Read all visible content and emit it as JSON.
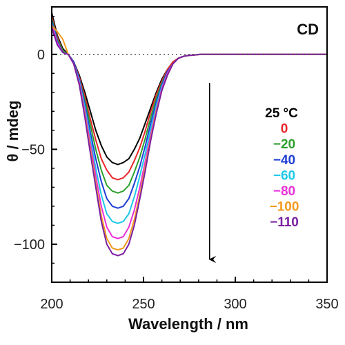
{
  "chart_data": {
    "type": "line",
    "title": "",
    "corner_label": "CD",
    "xlabel": "Wavelength / nm",
    "ylabel": "θ / mdeg",
    "xlim": [
      200,
      350
    ],
    "ylim": [
      -120,
      25
    ],
    "x_ticks": [
      200,
      250,
      300,
      350
    ],
    "y_ticks": [
      0,
      -50,
      -100
    ],
    "y_tick_labels": [
      "0",
      "−50",
      "−100"
    ],
    "zero_line": "dotted",
    "grid": false,
    "legend_placement": "right",
    "legend_title": "25 °C",
    "x": [
      200,
      203,
      206,
      209,
      212,
      215,
      218,
      221,
      224,
      227,
      230,
      233,
      236,
      239,
      242,
      245,
      248,
      251,
      254,
      257,
      260,
      263,
      266,
      269,
      272,
      275,
      278,
      281,
      284,
      290,
      300,
      320,
      350
    ],
    "series": [
      {
        "name": "25 °C",
        "color": "#000000",
        "values": [
          22,
          10,
          3,
          0,
          -4,
          -11,
          -20,
          -30,
          -40,
          -48,
          -54,
          -57,
          -58,
          -57,
          -55,
          -50,
          -44,
          -36,
          -28,
          -20,
          -13,
          -8,
          -4,
          -2,
          -1,
          -0.5,
          -0.3,
          0,
          0,
          0,
          0,
          0,
          0
        ]
      },
      {
        "name": "0",
        "color": "#e8262a",
        "values": [
          20,
          9,
          2,
          0,
          -4,
          -12,
          -22,
          -34,
          -45,
          -55,
          -61,
          -65,
          -66,
          -65,
          -62,
          -56,
          -49,
          -40,
          -30,
          -21,
          -14,
          -8,
          -4,
          -2,
          -1,
          -0.5,
          -0.3,
          0,
          0,
          0,
          0,
          0,
          0
        ]
      },
      {
        "name": "−20",
        "color": "#2ca02c",
        "values": [
          19,
          8,
          2,
          0,
          -4,
          -13,
          -24,
          -37,
          -50,
          -61,
          -69,
          -72,
          -73,
          -72,
          -69,
          -62,
          -54,
          -44,
          -33,
          -23,
          -15,
          -9,
          -5,
          -2,
          -1,
          -0.5,
          -0.3,
          0,
          0,
          0,
          0,
          0,
          0
        ]
      },
      {
        "name": "−40",
        "color": "#1f3fd6",
        "values": [
          18,
          7,
          1,
          0,
          -4,
          -13,
          -26,
          -41,
          -55,
          -67,
          -76,
          -80,
          -81,
          -80,
          -76,
          -68,
          -59,
          -48,
          -36,
          -25,
          -16,
          -9,
          -5,
          -2,
          -1,
          -0.5,
          -0.3,
          0,
          0,
          0,
          0,
          0,
          0
        ]
      },
      {
        "name": "−60",
        "color": "#1ec8e8",
        "values": [
          17,
          6,
          1,
          0,
          -5,
          -14,
          -28,
          -44,
          -60,
          -74,
          -84,
          -88,
          -89,
          -88,
          -84,
          -75,
          -64,
          -52,
          -39,
          -27,
          -17,
          -10,
          -5,
          -2,
          -1,
          -0.5,
          -0.3,
          0,
          0,
          0,
          0,
          0,
          0
        ]
      },
      {
        "name": "−80",
        "color": "#e830d8",
        "values": [
          16,
          6,
          1,
          0,
          -5,
          -15,
          -30,
          -47,
          -64,
          -80,
          -91,
          -96,
          -97,
          -96,
          -91,
          -82,
          -70,
          -56,
          -42,
          -29,
          -18,
          -10,
          -5,
          -2,
          -1,
          -0.5,
          -0.3,
          0,
          0,
          0,
          0,
          0,
          0
        ]
      },
      {
        "name": "−100",
        "color": "#f39a1e",
        "values": [
          15,
          12,
          8,
          0,
          -5,
          -16,
          -32,
          -50,
          -68,
          -85,
          -97,
          -102,
          -103,
          -102,
          -97,
          -87,
          -74,
          -59,
          -44,
          -30,
          -19,
          -11,
          -5,
          -2,
          -1,
          -0.5,
          -0.3,
          0,
          0,
          0,
          0,
          0,
          0
        ]
      },
      {
        "name": "−110",
        "color": "#7b1fa2",
        "values": [
          14,
          5,
          1,
          0,
          -5,
          -16,
          -33,
          -52,
          -70,
          -88,
          -100,
          -105,
          -106,
          -105,
          -100,
          -90,
          -76,
          -61,
          -45,
          -31,
          -19,
          -11,
          -5,
          -2,
          -1,
          -0.5,
          -0.3,
          0,
          0,
          0,
          0,
          0,
          0
        ]
      }
    ],
    "annotation": {
      "type": "arrow",
      "direction": "down",
      "from": [
        286,
        -15
      ],
      "to": [
        286,
        -108
      ]
    }
  }
}
